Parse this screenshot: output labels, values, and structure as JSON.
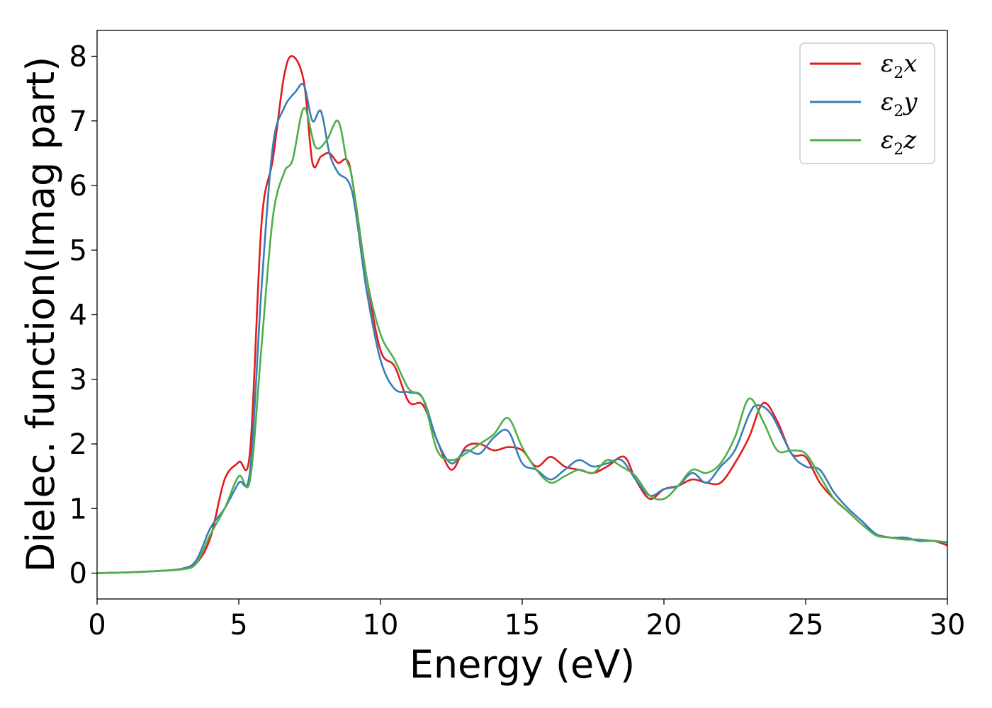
{
  "chart_data": {
    "type": "line",
    "title": "",
    "xlabel": "Energy (eV)",
    "ylabel": "Dielec. function(Imag part)",
    "xlim": [
      0,
      30
    ],
    "ylim": [
      -0.4,
      8.4
    ],
    "xticks": [
      0,
      5,
      10,
      15,
      20,
      25,
      30
    ],
    "yticks": [
      0,
      1,
      2,
      3,
      4,
      5,
      6,
      7,
      8
    ],
    "grid": false,
    "legend_position": "top-right",
    "series": [
      {
        "name": "ε2x",
        "symbol": "ε",
        "sub": "2",
        "axis": "x",
        "color": "#e41a1c",
        "x": [
          0,
          1,
          2,
          3,
          3.5,
          4,
          4.5,
          5,
          5.4,
          5.8,
          6.2,
          6.6,
          6.9,
          7.3,
          7.6,
          7.9,
          8.2,
          8.5,
          8.8,
          9.0,
          9.5,
          10,
          10.5,
          11,
          11.5,
          12,
          12.5,
          13,
          13.5,
          14,
          14.5,
          15,
          15.5,
          16,
          16.5,
          17,
          17.5,
          18,
          18.6,
          19,
          19.5,
          20,
          20.5,
          21,
          21.5,
          22,
          22.5,
          23,
          23.5,
          24,
          24.5,
          25,
          25.5,
          26,
          26.5,
          27,
          27.5,
          28,
          28.5,
          29,
          29.5,
          30
        ],
        "y": [
          0.0,
          0.01,
          0.03,
          0.06,
          0.15,
          0.55,
          1.45,
          1.72,
          1.9,
          5.4,
          6.4,
          7.7,
          8.0,
          7.6,
          6.35,
          6.45,
          6.5,
          6.35,
          6.4,
          6.1,
          4.6,
          3.45,
          3.2,
          2.65,
          2.6,
          2.05,
          1.6,
          1.95,
          2.0,
          1.9,
          1.95,
          1.9,
          1.65,
          1.8,
          1.65,
          1.6,
          1.55,
          1.65,
          1.8,
          1.45,
          1.15,
          1.3,
          1.35,
          1.45,
          1.4,
          1.4,
          1.7,
          2.1,
          2.63,
          2.35,
          1.85,
          1.8,
          1.4,
          1.15,
          0.95,
          0.75,
          0.6,
          0.55,
          0.55,
          0.5,
          0.5,
          0.43
        ]
      },
      {
        "name": "ε2y",
        "symbol": "ε",
        "sub": "2",
        "axis": "y",
        "color": "#377eb8",
        "x": [
          0,
          1,
          2,
          3,
          3.5,
          4,
          4.5,
          5,
          5.4,
          5.8,
          6.2,
          6.6,
          7.0,
          7.3,
          7.6,
          7.9,
          8.2,
          8.5,
          9.0,
          9.5,
          10,
          10.5,
          11,
          11.5,
          12,
          12.5,
          13,
          13.5,
          14,
          14.5,
          15,
          15.5,
          16,
          16.5,
          17,
          17.5,
          18,
          18.5,
          19,
          19.5,
          20,
          20.5,
          21,
          21.5,
          22,
          22.5,
          23,
          23.3,
          23.8,
          24.5,
          25,
          25.5,
          26,
          26.5,
          27,
          27.5,
          28,
          28.5,
          29,
          29.5,
          30
        ],
        "y": [
          0.0,
          0.01,
          0.03,
          0.07,
          0.2,
          0.7,
          1.0,
          1.4,
          1.6,
          4.4,
          6.6,
          7.2,
          7.45,
          7.55,
          7.0,
          7.15,
          6.5,
          6.2,
          5.9,
          4.4,
          3.3,
          2.85,
          2.8,
          2.7,
          2.05,
          1.7,
          1.9,
          1.85,
          2.1,
          2.2,
          1.7,
          1.6,
          1.45,
          1.6,
          1.75,
          1.65,
          1.7,
          1.75,
          1.45,
          1.2,
          1.3,
          1.35,
          1.55,
          1.4,
          1.65,
          1.9,
          2.45,
          2.6,
          2.45,
          1.85,
          1.65,
          1.6,
          1.25,
          1.0,
          0.8,
          0.6,
          0.55,
          0.55,
          0.5,
          0.5,
          0.47
        ]
      },
      {
        "name": "ε2z",
        "symbol": "ε",
        "sub": "2",
        "axis": "z",
        "color": "#4daf4a",
        "x": [
          0,
          1,
          2,
          3,
          3.5,
          4,
          4.5,
          5,
          5.4,
          5.8,
          6.2,
          6.6,
          6.9,
          7.3,
          7.7,
          8.1,
          8.5,
          8.8,
          9.0,
          9.5,
          10,
          10.5,
          11,
          11.5,
          12,
          12.5,
          13,
          13.5,
          14,
          14.5,
          15,
          15.5,
          16,
          16.5,
          17,
          17.5,
          18,
          18.5,
          19,
          19.5,
          20,
          20.5,
          21,
          21.5,
          22,
          22.5,
          23,
          23.5,
          24,
          24.5,
          25,
          25.5,
          26,
          26.5,
          27,
          27.5,
          28,
          28.5,
          29,
          29.5,
          30
        ],
        "y": [
          0.0,
          0.01,
          0.03,
          0.06,
          0.15,
          0.6,
          1.0,
          1.5,
          1.45,
          3.5,
          5.5,
          6.2,
          6.4,
          7.2,
          6.6,
          6.7,
          7.0,
          6.4,
          6.1,
          4.6,
          3.7,
          3.3,
          2.85,
          2.7,
          1.9,
          1.75,
          1.85,
          2.0,
          2.15,
          2.4,
          1.95,
          1.6,
          1.4,
          1.5,
          1.6,
          1.55,
          1.75,
          1.65,
          1.5,
          1.2,
          1.15,
          1.35,
          1.6,
          1.55,
          1.7,
          2.1,
          2.7,
          2.35,
          1.9,
          1.9,
          1.85,
          1.5,
          1.15,
          0.95,
          0.75,
          0.58,
          0.55,
          0.52,
          0.52,
          0.5,
          0.48
        ]
      }
    ]
  }
}
